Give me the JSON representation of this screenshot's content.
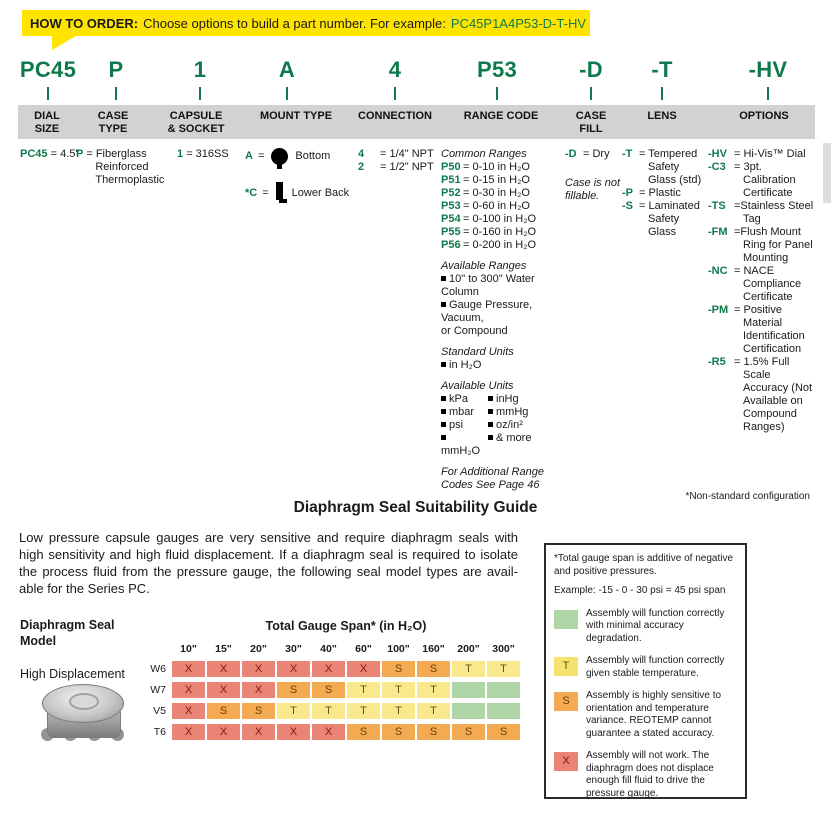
{
  "banner": {
    "label": "HOW TO ORDER:",
    "text": "Choose options to build a part number. For example:",
    "example": "PC45P1A4P53-D-T-HV"
  },
  "builder": {
    "eq": "=",
    "codes": [
      "PC45",
      "P",
      "1",
      "A",
      "4",
      "P53",
      "-D",
      "-T",
      "-HV"
    ],
    "headers": [
      [
        "DIAL",
        "SIZE"
      ],
      [
        "CASE",
        "TYPE"
      ],
      [
        "CAPSULE",
        "& SOCKET"
      ],
      [
        "MOUNT TYPE"
      ],
      [
        "CONNECTION"
      ],
      [
        "RANGE CODE"
      ],
      [
        "CASE",
        "FILL"
      ],
      [
        "LENS"
      ],
      [
        "OPTIONS"
      ]
    ],
    "dial": {
      "code": "PC45",
      "value": "= 4.5\""
    },
    "case_type": {
      "code": "P",
      "lines": [
        "= Fiberglass",
        "Reinforced",
        "Thermoplastic"
      ]
    },
    "capsule": {
      "code": "1",
      "value": "= 316SS"
    },
    "mount": [
      {
        "code": "A",
        "label": "Bottom",
        "icon": "bottom-mount-icon"
      },
      {
        "code": "*C",
        "label": "Lower Back",
        "icon": "lower-back-mount-icon"
      }
    ],
    "connection": [
      {
        "code": "4",
        "text": "= 1/4\" NPT"
      },
      {
        "code": "2",
        "text": "= 1/2\" NPT"
      }
    ],
    "range": {
      "lines": [
        {
          "t": "i",
          "text": "Common Ranges"
        },
        {
          "t": "c",
          "code": "P50",
          "text": "= 0-10 in H₂O"
        },
        {
          "t": "c",
          "code": "P51",
          "text": "= 0-15 in H₂O"
        },
        {
          "t": "c",
          "code": "P52",
          "text": "= 0-30 in H₂O"
        },
        {
          "t": "c",
          "code": "P53",
          "text": "= 0-60 in H₂O"
        },
        {
          "t": "c",
          "code": "P54",
          "text": "= 0-100 in H₂O"
        },
        {
          "t": "c",
          "code": "P55",
          "text": "= 0-160 in H₂O"
        },
        {
          "t": "c",
          "code": "P56",
          "text": "= 0-200 in H₂O"
        },
        {
          "t": "sp"
        },
        {
          "t": "i",
          "text": "Available Ranges"
        },
        {
          "t": "b",
          "text": "10\" to 300\" Water Column"
        },
        {
          "t": "b",
          "text": "Gauge Pressure, Vacuum,"
        },
        {
          "t": "p",
          "text": "or Compound"
        },
        {
          "t": "sp"
        },
        {
          "t": "i",
          "text": "Standard Units"
        },
        {
          "t": "b",
          "text": "in H₂O"
        },
        {
          "t": "sp"
        },
        {
          "t": "i",
          "text": "Available Units"
        },
        {
          "t": "b2",
          "a": "kPa",
          "b": "inHg"
        },
        {
          "t": "b2",
          "a": "mbar",
          "b": "mmHg"
        },
        {
          "t": "b2",
          "a": "psi",
          "b": "oz/in²"
        },
        {
          "t": "b2",
          "a": "mmH₂O",
          "b": "& more"
        },
        {
          "t": "sp"
        },
        {
          "t": "i",
          "text": "For Additional Range"
        },
        {
          "t": "i",
          "text": "Codes See Page 46"
        }
      ]
    },
    "case_fill": {
      "lines": [
        {
          "t": "c",
          "code": "-D",
          "text": "= Dry"
        },
        {
          "t": "sp"
        },
        {
          "t": "sp"
        },
        {
          "t": "i",
          "text": "Case is not"
        },
        {
          "t": "i",
          "text": "fillable."
        }
      ]
    },
    "lens": {
      "items": [
        {
          "code": "-T",
          "lines": [
            "= Tempered",
            "Safety",
            "Glass (std)"
          ]
        },
        {
          "code": "-P",
          "lines": [
            "= Plastic"
          ]
        },
        {
          "code": "-S",
          "lines": [
            "= Laminated",
            "Safety",
            "Glass"
          ]
        }
      ]
    },
    "options": {
      "items": [
        {
          "code": "-HV",
          "lines": [
            "= Hi-Vis™ Dial"
          ]
        },
        {
          "code": "-C3",
          "lines": [
            "= 3pt.",
            "Calibration",
            "Certificate"
          ]
        },
        {
          "code": "-TS",
          "lines": [
            "=Stainless Steel",
            "Tag"
          ]
        },
        {
          "code": "-FM",
          "lines": [
            "=Flush Mount",
            "Ring for Panel",
            "Mounting"
          ]
        },
        {
          "code": "-NC",
          "lines": [
            "= NACE",
            "Compliance",
            "Certificate"
          ]
        },
        {
          "code": "-PM",
          "lines": [
            "= Positive",
            "Material",
            "Identification",
            "Certification"
          ]
        },
        {
          "code": "-R5",
          "lines": [
            "= 1.5% Full",
            "Scale",
            "Accuracy (Not",
            "Available on",
            "Compound",
            "Ranges)"
          ]
        }
      ]
    }
  },
  "note_nonstandard": "*Non-standard configuration",
  "seal_guide": {
    "title": "Diaphragm Seal Suitability Guide",
    "paragraph_lines": [
      "Low pressure capsule gauges are very sensitive and require diaphragm seals with",
      "high sensitivity and high fluid displacement. If a diaphragm seal is required to isolate",
      "the process fluid from the pressure gauge, the following seal model types are avail-",
      "able for the Series PC."
    ],
    "model_label": [
      "Diaphragm Seal",
      "Model"
    ],
    "model_type": "High Displacement",
    "table": {
      "title": "Total Gauge Span* (in H₂O)",
      "columns": [
        "10\"",
        "15\"",
        "20\"",
        "30\"",
        "40\"",
        "60\"",
        "100\"",
        "160\"",
        "200\"",
        "300\""
      ],
      "rows": [
        {
          "label": "W6",
          "cells": [
            "X",
            "X",
            "X",
            "X",
            "X",
            "X",
            "S",
            "S",
            "T",
            "T"
          ]
        },
        {
          "label": "W7",
          "cells": [
            "X",
            "X",
            "X",
            "S",
            "S",
            "T",
            "T",
            "T",
            "",
            ""
          ]
        },
        {
          "label": "V5",
          "cells": [
            "X",
            "S",
            "S",
            "T",
            "T",
            "T",
            "T",
            "T",
            "",
            ""
          ]
        },
        {
          "label": "T6",
          "cells": [
            "X",
            "X",
            "X",
            "X",
            "X",
            "S",
            "S",
            "S",
            "S",
            "S"
          ]
        }
      ]
    }
  },
  "legend": {
    "note1": "*Total gauge span is additive of negative and positive pressures.",
    "note2": "Example: -15 - 0 - 30 psi = 45 psi span",
    "items": [
      {
        "key": "",
        "desc": "Assembly will function correctly with minimal accuracy degradation."
      },
      {
        "key": "T",
        "desc": "Assembly will function correctly given stable temperature."
      },
      {
        "key": "S",
        "desc": "Assembly is highly sensitive to orientation and temperature variance. REOTEMP cannot guarantee a stated accuracy."
      },
      {
        "key": "X",
        "desc": "Assembly will not work. The diaphragm does not displace enough fill fluid to drive the pressure gauge."
      }
    ]
  },
  "colors": {
    "accent_green": "#0e7a4c",
    "banner_yellow": "#ffe400",
    "header_bar_gray": "#d2d2d2",
    "cell_x_red": "#ea8474",
    "cell_s_orange": "#f4aa52",
    "cell_t_yellow": "#fae98c",
    "cell_ok_green": "#b0d5a6"
  }
}
